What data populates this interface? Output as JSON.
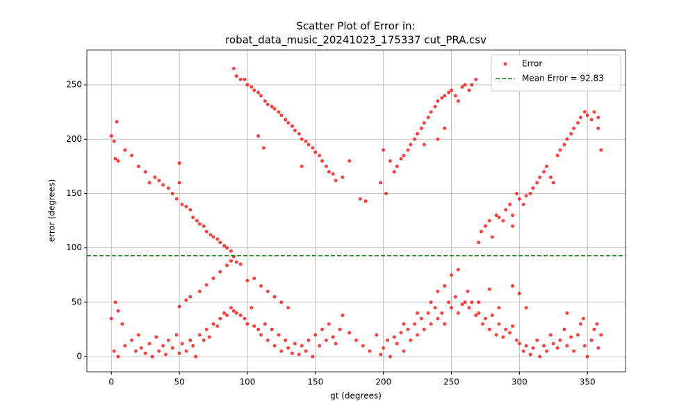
{
  "chart_data": {
    "type": "scatter",
    "title": [
      "Scatter Plot of Error in:",
      "robat_data_music_20241023_175337 cut_PRA.csv"
    ],
    "xlabel": "gt (degrees)",
    "ylabel": "error (degrees)",
    "xlim": [
      -18,
      378
    ],
    "ylim": [
      -14,
      282
    ],
    "xticks": [
      0,
      50,
      100,
      150,
      200,
      250,
      300,
      350
    ],
    "yticks": [
      0,
      50,
      100,
      150,
      200,
      250
    ],
    "grid": true,
    "legend": "upper right",
    "hlines": [
      {
        "value": 92.83,
        "label": "Mean Error = 92.83",
        "color": "#008000"
      }
    ],
    "series": [
      {
        "name": "Error",
        "color": "#ff0000",
        "points": [
          [
            0,
            203
          ],
          [
            2,
            198
          ],
          [
            3,
            182
          ],
          [
            5,
            180
          ],
          [
            10,
            190
          ],
          [
            15,
            185
          ],
          [
            20,
            175
          ],
          [
            25,
            170
          ],
          [
            28,
            160
          ],
          [
            32,
            165
          ],
          [
            35,
            162
          ],
          [
            38,
            158
          ],
          [
            42,
            155
          ],
          [
            45,
            150
          ],
          [
            48,
            145
          ],
          [
            50,
            160
          ],
          [
            52,
            140
          ],
          [
            55,
            138
          ],
          [
            58,
            135
          ],
          [
            60,
            128
          ],
          [
            63,
            125
          ],
          [
            65,
            122
          ],
          [
            68,
            120
          ],
          [
            70,
            115
          ],
          [
            73,
            112
          ],
          [
            75,
            110
          ],
          [
            78,
            108
          ],
          [
            80,
            105
          ],
          [
            83,
            102
          ],
          [
            85,
            100
          ],
          [
            88,
            97
          ],
          [
            90,
            92
          ],
          [
            4,
            216
          ],
          [
            50,
            178
          ],
          [
            50,
            46
          ],
          [
            55,
            52
          ],
          [
            58,
            55
          ],
          [
            65,
            60
          ],
          [
            70,
            66
          ],
          [
            75,
            72
          ],
          [
            80,
            78
          ],
          [
            85,
            84
          ],
          [
            88,
            88
          ],
          [
            92,
            87
          ],
          [
            95,
            85
          ],
          [
            90,
            265
          ],
          [
            92,
            258
          ],
          [
            95,
            255
          ],
          [
            98,
            255
          ],
          [
            100,
            250
          ],
          [
            103,
            248
          ],
          [
            105,
            245
          ],
          [
            108,
            243
          ],
          [
            110,
            240
          ],
          [
            113,
            235
          ],
          [
            115,
            232
          ],
          [
            118,
            230
          ],
          [
            120,
            228
          ],
          [
            123,
            225
          ],
          [
            125,
            222
          ],
          [
            128,
            218
          ],
          [
            130,
            215
          ],
          [
            133,
            212
          ],
          [
            135,
            208
          ],
          [
            138,
            205
          ],
          [
            140,
            200
          ],
          [
            143,
            198
          ],
          [
            145,
            195
          ],
          [
            148,
            192
          ],
          [
            150,
            188
          ],
          [
            153,
            185
          ],
          [
            155,
            180
          ],
          [
            158,
            175
          ],
          [
            160,
            170
          ],
          [
            163,
            168
          ],
          [
            165,
            162
          ],
          [
            170,
            165
          ],
          [
            175,
            180
          ],
          [
            183,
            145
          ],
          [
            187,
            143
          ],
          [
            108,
            203
          ],
          [
            112,
            192
          ],
          [
            140,
            175
          ],
          [
            100,
            70
          ],
          [
            105,
            72
          ],
          [
            110,
            65
          ],
          [
            115,
            60
          ],
          [
            120,
            55
          ],
          [
            125,
            50
          ],
          [
            130,
            45
          ],
          [
            198,
            160
          ],
          [
            202,
            150
          ],
          [
            205,
            180
          ],
          [
            208,
            170
          ],
          [
            210,
            175
          ],
          [
            213,
            182
          ],
          [
            215,
            185
          ],
          [
            218,
            190
          ],
          [
            220,
            195
          ],
          [
            223,
            200
          ],
          [
            225,
            205
          ],
          [
            228,
            210
          ],
          [
            230,
            215
          ],
          [
            233,
            220
          ],
          [
            235,
            225
          ],
          [
            238,
            230
          ],
          [
            240,
            235
          ],
          [
            243,
            238
          ],
          [
            245,
            240
          ],
          [
            248,
            243
          ],
          [
            250,
            245
          ],
          [
            253,
            240
          ],
          [
            255,
            235
          ],
          [
            258,
            248
          ],
          [
            260,
            250
          ],
          [
            263,
            245
          ],
          [
            265,
            250
          ],
          [
            268,
            255
          ],
          [
            240,
            200
          ],
          [
            245,
            210
          ],
          [
            230,
            195
          ],
          [
            200,
            190
          ],
          [
            270,
            105
          ],
          [
            272,
            115
          ],
          [
            275,
            120
          ],
          [
            278,
            125
          ],
          [
            280,
            110
          ],
          [
            283,
            130
          ],
          [
            285,
            128
          ],
          [
            288,
            125
          ],
          [
            290,
            135
          ],
          [
            293,
            140
          ],
          [
            295,
            130
          ],
          [
            298,
            150
          ],
          [
            300,
            145
          ],
          [
            303,
            140
          ],
          [
            305,
            148
          ],
          [
            308,
            150
          ],
          [
            310,
            155
          ],
          [
            313,
            160
          ],
          [
            315,
            165
          ],
          [
            318,
            170
          ],
          [
            320,
            175
          ],
          [
            323,
            165
          ],
          [
            325,
            160
          ],
          [
            328,
            185
          ],
          [
            330,
            190
          ],
          [
            333,
            195
          ],
          [
            335,
            200
          ],
          [
            338,
            205
          ],
          [
            340,
            210
          ],
          [
            343,
            215
          ],
          [
            345,
            220
          ],
          [
            348,
            225
          ],
          [
            350,
            222
          ],
          [
            353,
            218
          ],
          [
            355,
            225
          ],
          [
            358,
            210
          ],
          [
            360,
            190
          ],
          [
            358,
            220
          ],
          [
            295,
            120
          ],
          [
            215,
            30
          ],
          [
            225,
            40
          ],
          [
            235,
            50
          ],
          [
            240,
            60
          ],
          [
            245,
            65
          ],
          [
            250,
            75
          ],
          [
            255,
            80
          ],
          [
            262,
            60
          ],
          [
            270,
            50
          ],
          [
            278,
            62
          ],
          [
            285,
            45
          ],
          [
            295,
            65
          ],
          [
            300,
            58
          ],
          [
            305,
            45
          ],
          [
            0,
            35
          ],
          [
            3,
            50
          ],
          [
            5,
            42
          ],
          [
            8,
            30
          ],
          [
            2,
            5
          ],
          [
            5,
            0
          ],
          [
            10,
            10
          ],
          [
            15,
            15
          ],
          [
            18,
            5
          ],
          [
            20,
            20
          ],
          [
            22,
            8
          ],
          [
            25,
            3
          ],
          [
            28,
            12
          ],
          [
            30,
            0
          ],
          [
            33,
            18
          ],
          [
            35,
            5
          ],
          [
            38,
            10
          ],
          [
            40,
            2
          ],
          [
            42,
            15
          ],
          [
            45,
            8
          ],
          [
            48,
            20
          ],
          [
            50,
            3
          ],
          [
            52,
            12
          ],
          [
            55,
            5
          ],
          [
            58,
            15
          ],
          [
            60,
            10
          ],
          [
            62,
            0
          ],
          [
            65,
            20
          ],
          [
            68,
            15
          ],
          [
            70,
            25
          ],
          [
            72,
            18
          ],
          [
            75,
            30
          ],
          [
            78,
            28
          ],
          [
            80,
            35
          ],
          [
            83,
            40
          ],
          [
            85,
            38
          ],
          [
            88,
            45
          ],
          [
            90,
            42
          ],
          [
            92,
            40
          ],
          [
            95,
            38
          ],
          [
            98,
            35
          ],
          [
            100,
            30
          ],
          [
            103,
            45
          ],
          [
            105,
            28
          ],
          [
            108,
            25
          ],
          [
            110,
            20
          ],
          [
            113,
            30
          ],
          [
            115,
            15
          ],
          [
            118,
            25
          ],
          [
            120,
            10
          ],
          [
            123,
            20
          ],
          [
            125,
            5
          ],
          [
            128,
            15
          ],
          [
            130,
            8
          ],
          [
            133,
            3
          ],
          [
            135,
            12
          ],
          [
            138,
            2
          ],
          [
            140,
            10
          ],
          [
            143,
            5
          ],
          [
            145,
            15
          ],
          [
            148,
            0
          ],
          [
            150,
            20
          ],
          [
            153,
            10
          ],
          [
            155,
            25
          ],
          [
            158,
            15
          ],
          [
            160,
            30
          ],
          [
            163,
            18
          ],
          [
            165,
            12
          ],
          [
            168,
            25
          ],
          [
            170,
            38
          ],
          [
            175,
            22
          ],
          [
            180,
            15
          ],
          [
            185,
            10
          ],
          [
            190,
            5
          ],
          [
            195,
            20
          ],
          [
            198,
            2
          ],
          [
            200,
            8
          ],
          [
            203,
            15
          ],
          [
            205,
            0
          ],
          [
            208,
            18
          ],
          [
            210,
            12
          ],
          [
            213,
            22
          ],
          [
            215,
            5
          ],
          [
            218,
            25
          ],
          [
            220,
            15
          ],
          [
            223,
            30
          ],
          [
            225,
            20
          ],
          [
            228,
            35
          ],
          [
            230,
            25
          ],
          [
            233,
            40
          ],
          [
            235,
            30
          ],
          [
            238,
            45
          ],
          [
            240,
            35
          ],
          [
            243,
            40
          ],
          [
            245,
            30
          ],
          [
            248,
            50
          ],
          [
            250,
            45
          ],
          [
            253,
            55
          ],
          [
            255,
            40
          ],
          [
            258,
            48
          ],
          [
            260,
            50
          ],
          [
            263,
            45
          ],
          [
            265,
            50
          ],
          [
            268,
            38
          ],
          [
            270,
            40
          ],
          [
            273,
            30
          ],
          [
            275,
            35
          ],
          [
            278,
            25
          ],
          [
            280,
            38
          ],
          [
            283,
            20
          ],
          [
            285,
            30
          ],
          [
            288,
            18
          ],
          [
            290,
            25
          ],
          [
            293,
            22
          ],
          [
            295,
            28
          ],
          [
            298,
            15
          ],
          [
            300,
            12
          ],
          [
            303,
            5
          ],
          [
            305,
            10
          ],
          [
            308,
            2
          ],
          [
            310,
            8
          ],
          [
            313,
            15
          ],
          [
            315,
            0
          ],
          [
            318,
            10
          ],
          [
            320,
            5
          ],
          [
            323,
            20
          ],
          [
            325,
            12
          ],
          [
            328,
            8
          ],
          [
            330,
            15
          ],
          [
            333,
            25
          ],
          [
            335,
            10
          ],
          [
            338,
            18
          ],
          [
            340,
            5
          ],
          [
            343,
            20
          ],
          [
            345,
            30
          ],
          [
            348,
            10
          ],
          [
            350,
            0
          ],
          [
            353,
            15
          ],
          [
            355,
            25
          ],
          [
            358,
            8
          ],
          [
            360,
            20
          ],
          [
            335,
            40
          ],
          [
            347,
            35
          ],
          [
            357,
            30
          ]
        ]
      }
    ]
  }
}
